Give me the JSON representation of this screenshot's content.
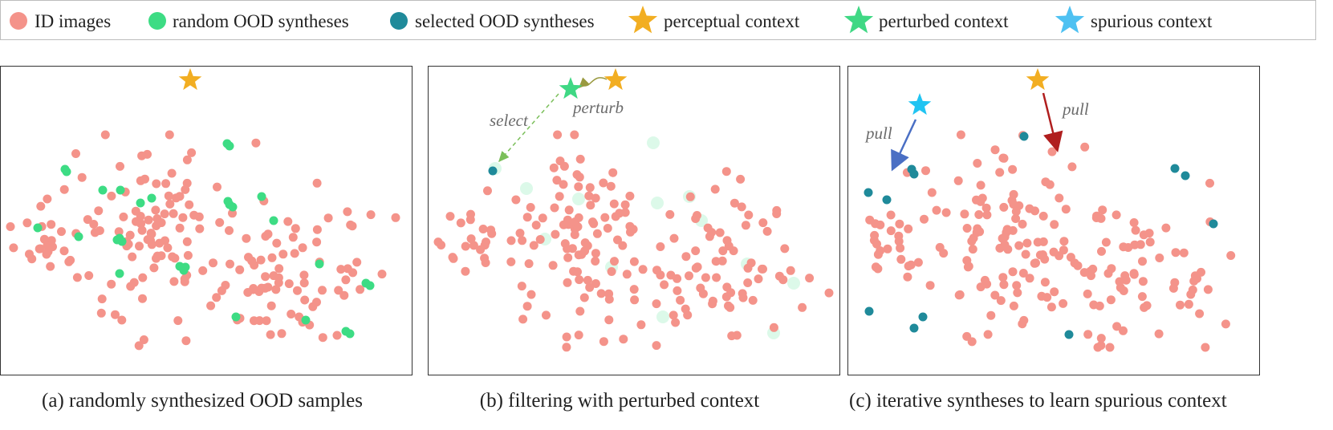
{
  "legend": {
    "items": [
      {
        "label": "ID images",
        "marker": "circle",
        "color": "#f4938a"
      },
      {
        "label": "random OOD syntheses",
        "marker": "circle",
        "color": "#3ddc84"
      },
      {
        "label": "selected OOD syntheses",
        "marker": "circle",
        "color": "#1f8a9a"
      },
      {
        "label": "perceptual context",
        "marker": "star",
        "color": "#f2ae22"
      },
      {
        "label": "perturbed context",
        "marker": "star",
        "color": "#3fd884"
      },
      {
        "label": "spurious context",
        "marker": "star",
        "color": "#4ec1f2"
      }
    ]
  },
  "panels": [
    {
      "caption": "(a) randomly synthesized OOD samples",
      "annotations": []
    },
    {
      "caption": "(b) filtering with perturbed context",
      "annotations": [
        "select",
        "perturb"
      ]
    },
    {
      "caption": "(c) iterative syntheses to learn spurious context",
      "annotations": [
        "pull",
        "pull"
      ]
    }
  ],
  "colors": {
    "id_point": "#f4938a",
    "random_ood": "#3ddc84",
    "selected_ood": "#1f8a9a",
    "perceptual_star": "#f2ae22",
    "perturbed_star": "#3fd884",
    "spurious_star": "#21c4f2",
    "pull_arrow_left": "#4a6fc4",
    "pull_arrow_right": "#b01e1e",
    "dashed_arrow": "#7bbf5a"
  }
}
